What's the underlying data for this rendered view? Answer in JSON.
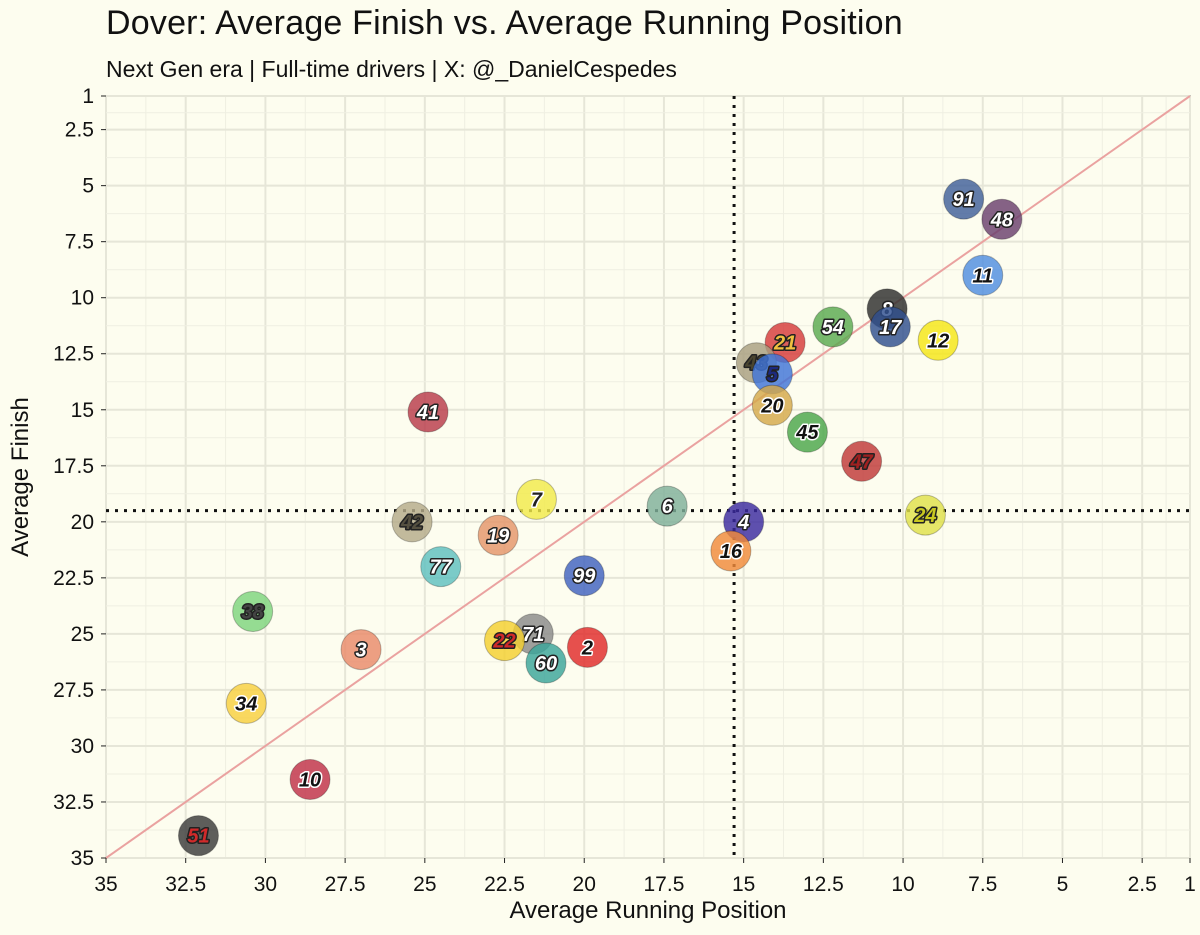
{
  "title": "Dover: Average Finish vs. Average Running Position",
  "subtitle": "Next Gen era | Full-time drivers | X: @_DanielCespedes",
  "chart_data": {
    "type": "scatter",
    "title": "Dover: Average Finish vs. Average Running Position",
    "subtitle": "Next Gen era | Full-time drivers | X: @_DanielCespedes",
    "xlabel": "Average Running Position",
    "ylabel": "Average Finish",
    "xlim": [
      35,
      1
    ],
    "ylim": [
      35,
      1
    ],
    "x_reversed": true,
    "y_reversed": true,
    "xticks": [
      35,
      32.5,
      30,
      27.5,
      25,
      22.5,
      20,
      17.5,
      15,
      12.5,
      10,
      7.5,
      5,
      2.5,
      1
    ],
    "yticks": [
      1,
      2.5,
      5,
      7.5,
      10,
      12.5,
      15,
      17.5,
      20,
      22.5,
      25,
      27.5,
      30,
      32.5,
      35
    ],
    "grid": true,
    "reference_lines": {
      "vertical_dotted_x": 15.3,
      "horizontal_dotted_y": 19.5,
      "diagonal": "y = x"
    },
    "points": [
      {
        "car": "91",
        "x": 8.1,
        "y": 5.6,
        "color": "#3f5f9a",
        "text_color": "#ffffff"
      },
      {
        "car": "48",
        "x": 6.9,
        "y": 6.5,
        "color": "#6a3f6e",
        "text_color": "#ffffff"
      },
      {
        "car": "11",
        "x": 7.5,
        "y": 9.0,
        "color": "#4f8de0",
        "text_color": "#111111"
      },
      {
        "car": "8",
        "x": 10.5,
        "y": 10.5,
        "color": "#2d2d2d",
        "text_color": "#ffffff"
      },
      {
        "car": "17",
        "x": 10.4,
        "y": 11.3,
        "color": "#2f4f8f",
        "text_color": "#ffffff"
      },
      {
        "car": "54",
        "x": 12.2,
        "y": 11.3,
        "color": "#5aaa50",
        "text_color": "#ffffff"
      },
      {
        "car": "12",
        "x": 8.9,
        "y": 11.9,
        "color": "#f5e616",
        "text_color": "#111111"
      },
      {
        "car": "21",
        "x": 13.7,
        "y": 12.0,
        "color": "#d53a3a",
        "text_color": "#f0c040"
      },
      {
        "car": "43",
        "x": 14.6,
        "y": 12.9,
        "color": "#a89f80",
        "text_color": "#4a4530"
      },
      {
        "car": "5",
        "x": 14.1,
        "y": 13.4,
        "color": "#3f74d8",
        "text_color": "#1d2a80"
      },
      {
        "car": "20",
        "x": 14.1,
        "y": 14.8,
        "color": "#d4a84a",
        "text_color": "#111111"
      },
      {
        "car": "45",
        "x": 13.0,
        "y": 16.0,
        "color": "#4aa64a",
        "text_color": "#111111"
      },
      {
        "car": "41",
        "x": 24.9,
        "y": 15.1,
        "color": "#b83a4a",
        "text_color": "#ffffff"
      },
      {
        "car": "47",
        "x": 11.3,
        "y": 17.3,
        "color": "#c03838",
        "text_color": "#a02020"
      },
      {
        "car": "7",
        "x": 21.5,
        "y": 19.0,
        "color": "#f2ea4a",
        "text_color": "#222222"
      },
      {
        "car": "6",
        "x": 17.4,
        "y": 19.3,
        "color": "#7fb09a",
        "text_color": "#ffffff"
      },
      {
        "car": "24",
        "x": 9.3,
        "y": 19.7,
        "color": "#dfe04a",
        "text_color": "#c8c820"
      },
      {
        "car": "4",
        "x": 15.0,
        "y": 20.0,
        "color": "#3a2aa0",
        "text_color": "#ffffff"
      },
      {
        "car": "42",
        "x": 25.4,
        "y": 20.0,
        "color": "#b4ab8a",
        "text_color": "#555040"
      },
      {
        "car": "19",
        "x": 22.7,
        "y": 20.6,
        "color": "#e4956a",
        "text_color": "#ffffff"
      },
      {
        "car": "16",
        "x": 15.4,
        "y": 21.3,
        "color": "#f08a3a",
        "text_color": "#111111"
      },
      {
        "car": "77",
        "x": 24.5,
        "y": 22.0,
        "color": "#5ec0c0",
        "text_color": "#ffffff"
      },
      {
        "car": "99",
        "x": 20.0,
        "y": 22.4,
        "color": "#3f62c0",
        "text_color": "#ffffff"
      },
      {
        "car": "38",
        "x": 30.4,
        "y": 24.0,
        "color": "#7ed47e",
        "text_color": "#444444"
      },
      {
        "car": "71",
        "x": 21.6,
        "y": 25.0,
        "color": "#8a8a8a",
        "text_color": "#ffffff"
      },
      {
        "car": "22",
        "x": 22.5,
        "y": 25.3,
        "color": "#f4d030",
        "text_color": "#d02a2a"
      },
      {
        "car": "2",
        "x": 19.9,
        "y": 25.6,
        "color": "#e02a2a",
        "text_color": "#111111"
      },
      {
        "car": "3",
        "x": 27.0,
        "y": 25.7,
        "color": "#e98a6a",
        "text_color": "#ffffff"
      },
      {
        "car": "60",
        "x": 21.2,
        "y": 26.3,
        "color": "#3aa59a",
        "text_color": "#ffffff"
      },
      {
        "car": "34",
        "x": 30.6,
        "y": 28.1,
        "color": "#f8d040",
        "text_color": "#111111"
      },
      {
        "car": "10",
        "x": 28.6,
        "y": 31.5,
        "color": "#c03048",
        "text_color": "#111111"
      },
      {
        "car": "51",
        "x": 32.1,
        "y": 34.0,
        "color": "#3a3a3a",
        "text_color": "#d02a2a"
      }
    ]
  }
}
